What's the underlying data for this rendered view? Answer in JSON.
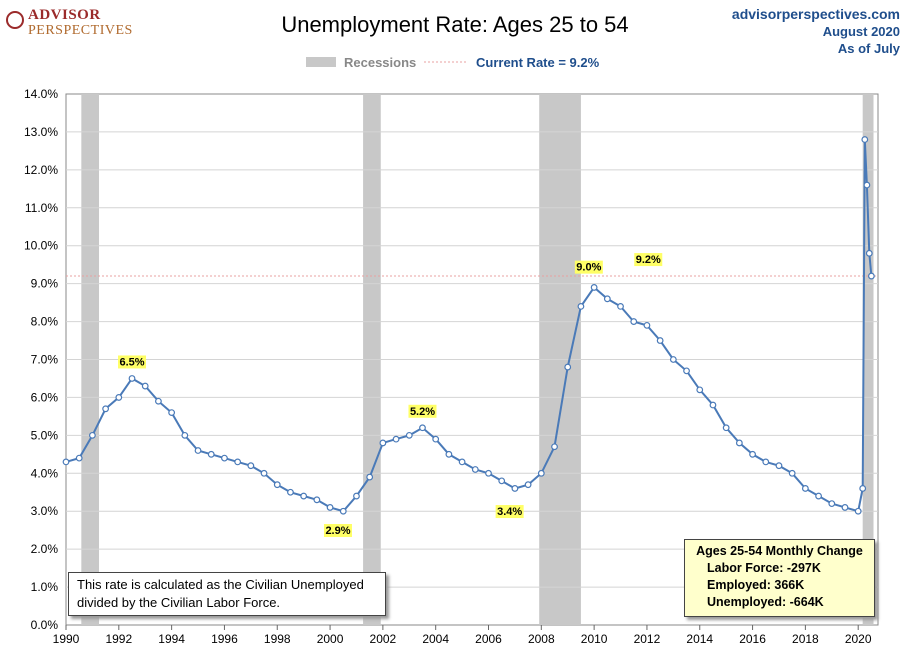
{
  "header": {
    "logo_line1": "ADVISOR",
    "logo_line2": "PERSPECTIVES",
    "site": "advisorperspectives.com",
    "date": "August 2020",
    "asof": "As of July"
  },
  "note": {
    "line1": "This rate is calculated as the Civilian Unemployed",
    "line2": "divided by the Civilian Labor Force."
  },
  "stats_box": {
    "header": "Ages 25-54  Monthly Change",
    "rows": [
      "Labor Force:  -297K",
      "Employed:  366K",
      "Unemployed:  -664K"
    ]
  },
  "colors": {
    "line": "#4a7ab8",
    "recession": "#c8c8c8",
    "callout": "#ffff66",
    "title_blue": "#1f4e8c"
  },
  "chart_data": {
    "type": "line",
    "title": "Unemployment Rate: Ages 25 to 54",
    "xlabel": "",
    "ylabel": "",
    "xlim": [
      1990.0,
      2020.75
    ],
    "ylim": [
      0,
      14
    ],
    "yticks": [
      "0.0%",
      "1.0%",
      "2.0%",
      "3.0%",
      "4.0%",
      "5.0%",
      "6.0%",
      "7.0%",
      "8.0%",
      "9.0%",
      "10.0%",
      "11.0%",
      "12.0%",
      "13.0%",
      "14.0%"
    ],
    "xticks": [
      "1990",
      "1992",
      "1994",
      "1996",
      "1998",
      "2000",
      "2002",
      "2004",
      "2006",
      "2008",
      "2010",
      "2012",
      "2014",
      "2016",
      "2018",
      "2020"
    ],
    "grid": true,
    "legend": {
      "position": "top-center",
      "recessions_label": "Recessions",
      "current_label": "Current Rate = 9.2%"
    },
    "recessions": [
      [
        1990.58,
        1991.25
      ],
      [
        2001.25,
        2001.92
      ],
      [
        2007.92,
        2009.5
      ],
      [
        2020.17,
        2020.58
      ]
    ],
    "annotations": [
      {
        "x": 1992.5,
        "y": 6.5,
        "label": "6.5%"
      },
      {
        "x": 2000.3,
        "y": 2.9,
        "label": "2.9%"
      },
      {
        "x": 2003.5,
        "y": 5.2,
        "label": "5.2%"
      },
      {
        "x": 2006.8,
        "y": 3.4,
        "label": "3.4%"
      },
      {
        "x": 2009.8,
        "y": 9.0,
        "label": "9.0%"
      },
      {
        "x": 2012.05,
        "y": 9.2,
        "label": "9.2%"
      }
    ],
    "current_rate": 9.2,
    "series": [
      {
        "name": "Unemployment Rate: Ages 25 to 54",
        "x": [
          1990.0,
          1990.5,
          1991.0,
          1991.5,
          1992.0,
          1992.5,
          1993.0,
          1993.5,
          1994.0,
          1994.5,
          1995.0,
          1995.5,
          1996.0,
          1996.5,
          1997.0,
          1997.5,
          1998.0,
          1998.5,
          1999.0,
          1999.5,
          2000.0,
          2000.5,
          2001.0,
          2001.5,
          2002.0,
          2002.5,
          2003.0,
          2003.5,
          2004.0,
          2004.5,
          2005.0,
          2005.5,
          2006.0,
          2006.5,
          2007.0,
          2007.5,
          2008.0,
          2008.5,
          2009.0,
          2009.5,
          2010.0,
          2010.5,
          2011.0,
          2011.5,
          2012.0,
          2012.5,
          2013.0,
          2013.5,
          2014.0,
          2014.5,
          2015.0,
          2015.5,
          2016.0,
          2016.5,
          2017.0,
          2017.5,
          2018.0,
          2018.5,
          2019.0,
          2019.5,
          2020.0,
          2020.17,
          2020.25,
          2020.33,
          2020.42,
          2020.5
        ],
        "y": [
          4.3,
          4.4,
          5.0,
          5.7,
          6.0,
          6.5,
          6.3,
          5.9,
          5.6,
          5.0,
          4.6,
          4.5,
          4.4,
          4.3,
          4.2,
          4.0,
          3.7,
          3.5,
          3.4,
          3.3,
          3.1,
          3.0,
          3.4,
          3.9,
          4.8,
          4.9,
          5.0,
          5.2,
          4.9,
          4.5,
          4.3,
          4.1,
          4.0,
          3.8,
          3.6,
          3.7,
          4.0,
          4.7,
          6.8,
          8.4,
          8.9,
          8.6,
          8.4,
          8.0,
          7.9,
          7.5,
          7.0,
          6.7,
          6.2,
          5.8,
          5.2,
          4.8,
          4.5,
          4.3,
          4.2,
          4.0,
          3.6,
          3.4,
          3.2,
          3.1,
          3.0,
          3.6,
          12.8,
          11.6,
          9.8,
          9.2
        ]
      }
    ]
  }
}
